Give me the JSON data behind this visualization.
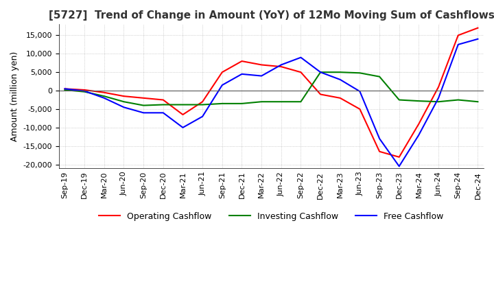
{
  "title": "[5727]  Trend of Change in Amount (YoY) of 12Mo Moving Sum of Cashflows",
  "ylabel": "Amount (million yen)",
  "ylim": [
    -21000,
    18000
  ],
  "yticks": [
    -20000,
    -15000,
    -10000,
    -5000,
    0,
    5000,
    10000,
    15000
  ],
  "x_labels": [
    "Sep-19",
    "Dec-19",
    "Mar-20",
    "Jun-20",
    "Sep-20",
    "Dec-20",
    "Mar-21",
    "Jun-21",
    "Sep-21",
    "Dec-21",
    "Mar-22",
    "Jun-22",
    "Sep-22",
    "Dec-22",
    "Mar-23",
    "Jun-23",
    "Sep-23",
    "Dec-23",
    "Mar-24",
    "Jun-24",
    "Sep-24",
    "Dec-24"
  ],
  "operating": [
    500,
    200,
    -500,
    -1500,
    -2000,
    -2500,
    -6500,
    -3000,
    5000,
    8000,
    7000,
    6500,
    5000,
    -1000,
    -2000,
    -5000,
    -16500,
    -18000,
    -9000,
    1000,
    15000,
    17000
  ],
  "investing": [
    200,
    -300,
    -1500,
    -3000,
    -4000,
    -3800,
    -3800,
    -3800,
    -3500,
    -3500,
    -3000,
    -3000,
    -3000,
    5000,
    5000,
    4800,
    3800,
    -2500,
    -2800,
    -3000,
    -2500,
    -3000
  ],
  "free": [
    500,
    -100,
    -2000,
    -4500,
    -6000,
    -6000,
    -10000,
    -7000,
    1500,
    4500,
    4000,
    7000,
    9000,
    5000,
    3000,
    -200,
    -13000,
    -20500,
    -12000,
    -2000,
    12500,
    14000
  ],
  "op_color": "#ff0000",
  "inv_color": "#008000",
  "free_color": "#0000ff",
  "bg_color": "#ffffff",
  "grid_color": "#b0b0b0",
  "title_fontsize": 11,
  "label_fontsize": 9,
  "tick_fontsize": 8
}
